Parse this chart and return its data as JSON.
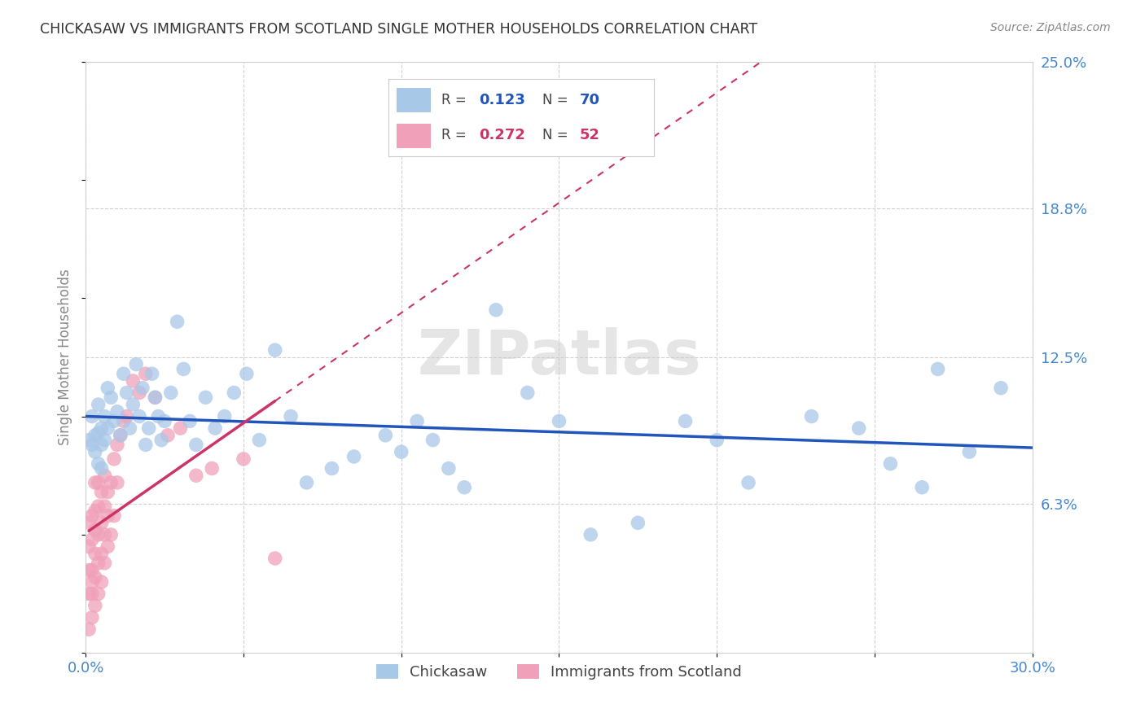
{
  "title": "CHICKASAW VS IMMIGRANTS FROM SCOTLAND SINGLE MOTHER HOUSEHOLDS CORRELATION CHART",
  "source": "Source: ZipAtlas.com",
  "ylabel": "Single Mother Households",
  "x_min": 0.0,
  "x_max": 0.3,
  "y_min": 0.0,
  "y_max": 0.25,
  "x_ticks": [
    0.0,
    0.05,
    0.1,
    0.15,
    0.2,
    0.25,
    0.3
  ],
  "y_tick_labels_right": [
    "6.3%",
    "12.5%",
    "18.8%",
    "25.0%"
  ],
  "y_ticks_right": [
    0.063,
    0.125,
    0.188,
    0.25
  ],
  "r_chickasaw": 0.123,
  "n_chickasaw": 70,
  "r_scotland": 0.272,
  "n_scotland": 52,
  "legend_labels": [
    "Chickasaw",
    "Immigrants from Scotland"
  ],
  "color_chickasaw": "#a8c8e8",
  "color_scotland": "#f0a0b8",
  "line_color_chickasaw": "#2255bb",
  "line_color_scotland": "#cc3366",
  "watermark": "ZIPatlas",
  "background_color": "#ffffff",
  "grid_color": "#d0d0d0",
  "title_color": "#333333",
  "chickasaw_x": [
    0.001,
    0.002,
    0.002,
    0.003,
    0.003,
    0.004,
    0.004,
    0.004,
    0.005,
    0.005,
    0.005,
    0.006,
    0.006,
    0.007,
    0.007,
    0.008,
    0.009,
    0.01,
    0.011,
    0.012,
    0.013,
    0.014,
    0.015,
    0.016,
    0.017,
    0.018,
    0.019,
    0.02,
    0.021,
    0.022,
    0.023,
    0.024,
    0.025,
    0.027,
    0.029,
    0.031,
    0.033,
    0.035,
    0.038,
    0.041,
    0.044,
    0.047,
    0.051,
    0.055,
    0.06,
    0.065,
    0.07,
    0.078,
    0.085,
    0.095,
    0.1,
    0.105,
    0.11,
    0.115,
    0.12,
    0.13,
    0.14,
    0.15,
    0.16,
    0.175,
    0.19,
    0.2,
    0.21,
    0.23,
    0.245,
    0.255,
    0.265,
    0.27,
    0.28,
    0.29
  ],
  "chickasaw_y": [
    0.09,
    0.088,
    0.1,
    0.092,
    0.085,
    0.08,
    0.093,
    0.105,
    0.088,
    0.095,
    0.078,
    0.1,
    0.09,
    0.112,
    0.095,
    0.108,
    0.098,
    0.102,
    0.092,
    0.118,
    0.11,
    0.095,
    0.105,
    0.122,
    0.1,
    0.112,
    0.088,
    0.095,
    0.118,
    0.108,
    0.1,
    0.09,
    0.098,
    0.11,
    0.14,
    0.12,
    0.098,
    0.088,
    0.108,
    0.095,
    0.1,
    0.11,
    0.118,
    0.09,
    0.128,
    0.1,
    0.072,
    0.078,
    0.083,
    0.092,
    0.085,
    0.098,
    0.09,
    0.078,
    0.07,
    0.145,
    0.11,
    0.098,
    0.05,
    0.055,
    0.098,
    0.09,
    0.072,
    0.1,
    0.095,
    0.08,
    0.07,
    0.12,
    0.085,
    0.112
  ],
  "scotland_x": [
    0.001,
    0.001,
    0.001,
    0.001,
    0.001,
    0.002,
    0.002,
    0.002,
    0.002,
    0.002,
    0.002,
    0.003,
    0.003,
    0.003,
    0.003,
    0.003,
    0.003,
    0.004,
    0.004,
    0.004,
    0.004,
    0.004,
    0.005,
    0.005,
    0.005,
    0.005,
    0.006,
    0.006,
    0.006,
    0.006,
    0.007,
    0.007,
    0.007,
    0.008,
    0.008,
    0.009,
    0.009,
    0.01,
    0.01,
    0.011,
    0.012,
    0.013,
    0.015,
    0.017,
    0.019,
    0.022,
    0.026,
    0.03,
    0.035,
    0.04,
    0.05,
    0.06
  ],
  "scotland_y": [
    0.01,
    0.025,
    0.035,
    0.045,
    0.055,
    0.015,
    0.025,
    0.035,
    0.048,
    0.058,
    0.03,
    0.02,
    0.032,
    0.042,
    0.052,
    0.06,
    0.072,
    0.025,
    0.038,
    0.05,
    0.062,
    0.072,
    0.03,
    0.042,
    0.055,
    0.068,
    0.038,
    0.05,
    0.062,
    0.075,
    0.045,
    0.058,
    0.068,
    0.05,
    0.072,
    0.058,
    0.082,
    0.072,
    0.088,
    0.092,
    0.098,
    0.1,
    0.115,
    0.11,
    0.118,
    0.108,
    0.092,
    0.095,
    0.075,
    0.078,
    0.082,
    0.04
  ]
}
